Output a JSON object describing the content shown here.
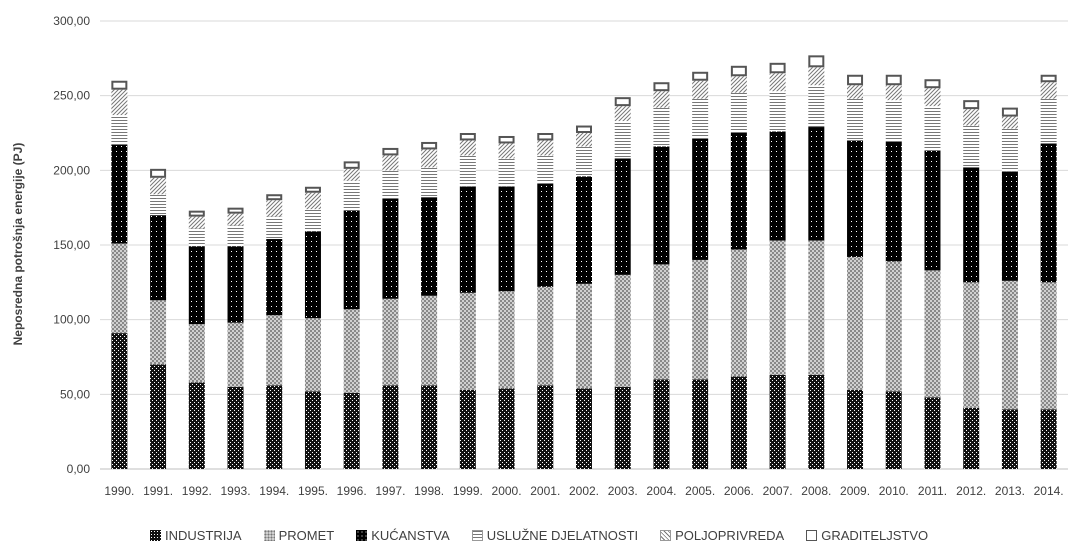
{
  "chart_data": {
    "type": "bar",
    "stacked": true,
    "ylabel": "Neposredna potrošnja energije (PJ)",
    "xlabel": "",
    "ylim": [
      0,
      300
    ],
    "yticks": [
      "0,00",
      "50,00",
      "100,00",
      "150,00",
      "200,00",
      "250,00",
      "300,00"
    ],
    "grid": true,
    "legend_position": "bottom",
    "categories": [
      "1990.",
      "1991.",
      "1992.",
      "1993.",
      "1994.",
      "1995.",
      "1996.",
      "1997.",
      "1998.",
      "1999.",
      "2000.",
      "2001.",
      "2002.",
      "2003.",
      "2004.",
      "2005.",
      "2006.",
      "2007.",
      "2008.",
      "2009.",
      "2010.",
      "2011.",
      "2012.",
      "2013.",
      "2014."
    ],
    "series": [
      {
        "name": "INDUSTRIJA",
        "values": [
          91,
          70,
          58,
          55,
          56,
          52,
          51,
          56,
          56,
          53,
          54,
          56,
          54,
          55,
          60,
          60,
          62,
          63,
          63,
          53,
          52,
          48,
          41,
          40,
          40
        ]
      },
      {
        "name": "PROMET",
        "values": [
          60,
          43,
          39,
          43,
          47,
          49,
          56,
          58,
          60,
          65,
          65,
          66,
          70,
          75,
          77,
          80,
          85,
          90,
          90,
          89,
          87,
          85,
          84,
          86,
          85
        ]
      },
      {
        "name": "KUĆANSTVA",
        "values": [
          66,
          57,
          52,
          51,
          51,
          58,
          66,
          67,
          66,
          71,
          70,
          69,
          72,
          78,
          79,
          81,
          78,
          73,
          76,
          78,
          80,
          80,
          77,
          73,
          93
        ]
      },
      {
        "name": "USLUŽNE DJELATNOSTI",
        "values": [
          20,
          14,
          12,
          14,
          15,
          15,
          20,
          19,
          20,
          21,
          19,
          19,
          20,
          25,
          26,
          27,
          27,
          27,
          28,
          28,
          28,
          30,
          28,
          29,
          30
        ]
      },
      {
        "name": "POLJOPRIVREDA",
        "values": [
          17,
          11,
          8,
          8,
          11,
          11,
          8,
          10,
          12,
          10,
          10,
          10,
          9,
          10,
          11,
          12,
          11,
          12,
          12,
          9,
          10,
          12,
          11,
          8,
          11
        ]
      },
      {
        "name": "GRADITELJSTVO",
        "values": [
          6,
          6,
          4,
          4,
          4,
          4,
          5,
          5,
          5,
          5,
          5,
          5,
          5,
          6,
          6,
          6,
          7,
          7,
          8,
          7,
          7,
          6,
          6,
          6,
          5
        ]
      }
    ]
  }
}
